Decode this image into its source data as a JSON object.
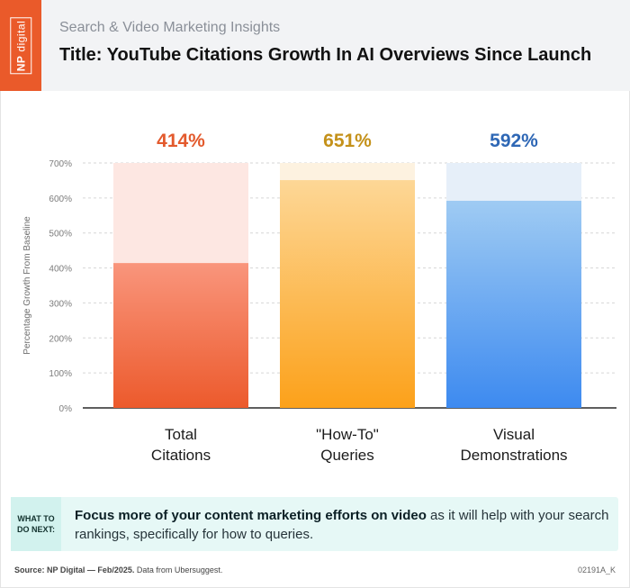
{
  "header": {
    "brand": "NP",
    "brand_suffix": "digital",
    "kicker": "Search & Video Marketing Insights",
    "title": "Title: YouTube Citations Growth In AI Overviews Since Launch"
  },
  "chart_data": {
    "type": "bar",
    "categories": [
      [
        "Total",
        "Citations"
      ],
      [
        "\"How-To\"",
        "Queries"
      ],
      [
        "Visual",
        "Demonstrations"
      ]
    ],
    "values": [
      414,
      651,
      592
    ],
    "value_labels": [
      "414%",
      "651%",
      "592%"
    ],
    "ylabel": "Percentage Growth From Baseline",
    "ylim": [
      0,
      700
    ],
    "yticks": [
      0,
      100,
      200,
      300,
      400,
      500,
      600,
      700
    ],
    "ytick_labels": [
      "0%",
      "100%",
      "200%",
      "300%",
      "400%",
      "500%",
      "600%",
      "700%"
    ],
    "grid": true,
    "colors": [
      {
        "top": "#f9957c",
        "bottom": "#ec5a2c",
        "track": "#fde7e2",
        "label": "#e35a2d"
      },
      {
        "top": "#fdd796",
        "bottom": "#fca11a",
        "track": "#fdf2e0",
        "label": "#c4911a"
      },
      {
        "top": "#9fcbf3",
        "bottom": "#3d8af0",
        "track": "#e6eff9",
        "label": "#2e67b5"
      }
    ]
  },
  "callout": {
    "tag_line1": "WHAT TO",
    "tag_line2": "DO NEXT:",
    "emphasis": "Focus more of your content marketing efforts on video",
    "rest": " as it will help with your search rankings, specifically for how to queries."
  },
  "footer": {
    "source_label": "Source: NP Digital — Feb/2025.",
    "source_detail": " Data from Ubersuggest.",
    "code": "02191A_K"
  }
}
